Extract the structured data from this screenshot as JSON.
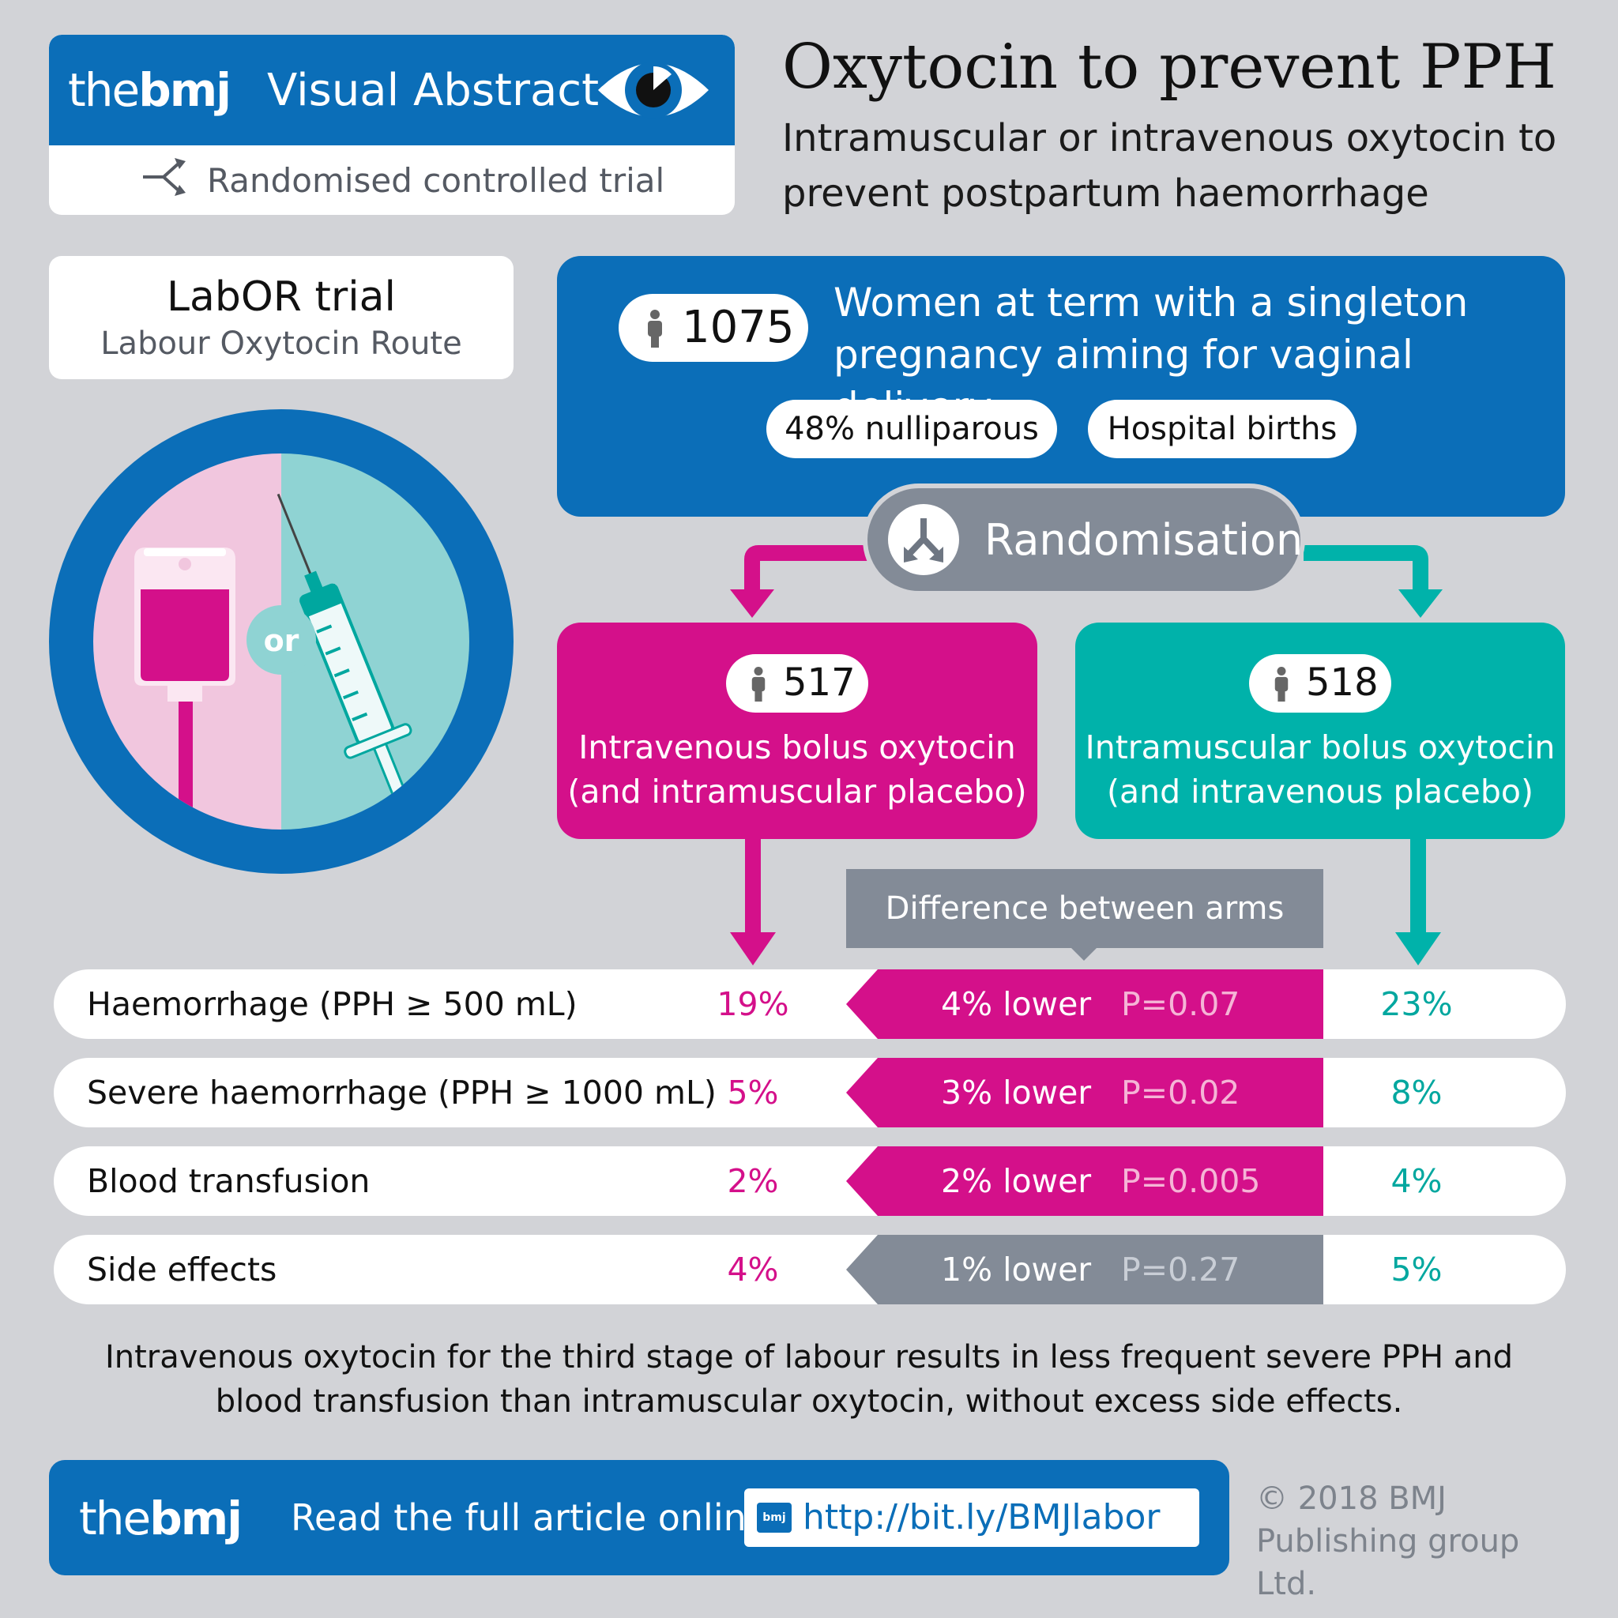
{
  "header": {
    "logo_light": "the",
    "logo_bold": "bmj",
    "label": "Visual Abstract",
    "trial_type": "Randomised controlled trial"
  },
  "title": "Oxytocin to prevent PPH",
  "subtitle": "Intramuscular or intravenous oxytocin to prevent postpartum haemorrhage",
  "trial": {
    "name": "LabOR trial",
    "full_name": "Labour Oxytocin Route"
  },
  "illustration": {
    "or_label": "or",
    "icons": [
      "iv-bag-icon",
      "syringe-icon"
    ]
  },
  "population": {
    "n": "1075",
    "description": "Women at term with a singleton pregnancy aiming for vaginal delivery",
    "tags": [
      "48% nulliparous",
      "Hospital births"
    ]
  },
  "randomisation": "Randomisation",
  "arms": [
    {
      "n": "517",
      "description": "Intravenous bolus oxytocin (and intramuscular placebo)",
      "color": "#d4108a"
    },
    {
      "n": "518",
      "description": "Intramuscular bolus oxytocin (and intravenous placebo)",
      "color": "#00b2aa"
    }
  ],
  "difference_label": "Difference between arms",
  "outcomes": [
    {
      "label": "Haemorrhage (PPH ≥ 500 mL)",
      "iv": "19%",
      "diff": "4% lower",
      "p": "P=0.07",
      "im": "23%"
    },
    {
      "label": "Severe haemorrhage (PPH ≥ 1000 mL)",
      "iv": "5%",
      "diff": "3% lower",
      "p": "P=0.02",
      "im": "8%"
    },
    {
      "label": "Blood transfusion",
      "iv": "2%",
      "diff": "2% lower",
      "p": "P=0.005",
      "im": "4%"
    },
    {
      "label": "Side effects",
      "iv": "4%",
      "diff": "1% lower",
      "p": "P=0.27",
      "im": "5%"
    }
  ],
  "conclusion": "Intravenous oxytocin for the third stage of labour results in less frequent severe PPH and blood transfusion than intramuscular oxytocin, without excess side effects.",
  "footer": {
    "logo_light": "the",
    "logo_bold": "bmj",
    "read_label": "Read the full article online",
    "url_icon": "bmj",
    "url": "http://bit.ly/BMJlabor",
    "copyright": "© 2018 BMJ Publishing group Ltd."
  },
  "colors": {
    "brand_blue": "#0b6eb8",
    "iv_magenta": "#d4108a",
    "im_teal": "#00b2aa",
    "neutral_grey": "#838b97",
    "background": "#d2d3d7"
  }
}
